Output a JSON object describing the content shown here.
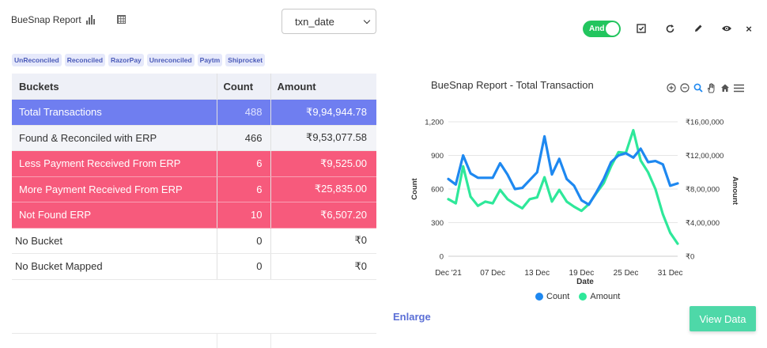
{
  "header": {
    "title": "BueSnap Report",
    "select_value": "txn_date",
    "toggle_label": "And"
  },
  "tags": [
    "UnReconciled",
    "Reconciled",
    "RazorPay",
    "Unreconciled",
    "Paytm",
    "Shiprocket"
  ],
  "table": {
    "headers": [
      "Buckets",
      "Count",
      "Amount"
    ],
    "rows": [
      {
        "bucket": "Total  Transactions",
        "count": "488",
        "amount": "₹9,94,944.78"
      },
      {
        "bucket": "Found & Reconciled with ERP",
        "count": "466",
        "amount": "₹9,53,077.58"
      },
      {
        "bucket": "Less Payment Received From ERP",
        "count": "6",
        "amount": "₹9,525.00"
      },
      {
        "bucket": "More Payment Received From ERP",
        "count": "6",
        "amount": "₹25,835.00"
      },
      {
        "bucket": "Not Found ERP",
        "count": "10",
        "amount": "₹6,507.20"
      },
      {
        "bucket": "No Bucket",
        "count": "0",
        "amount": "₹0"
      },
      {
        "bucket": "No Bucket Mapped",
        "count": "0",
        "amount": "₹0"
      }
    ]
  },
  "actions": {
    "enlarge_label": "Enlarge",
    "view_data_label": "View Data"
  },
  "colors": {
    "count_series": "#1e88f0",
    "amount_series": "#2ee89a",
    "total_row": "#6f7ef0",
    "alert_row": "#f75a7c",
    "toggle": "#22c55e"
  },
  "chart_data": {
    "type": "line",
    "title": "BueSnap Report - Total Transaction",
    "xlabel": "Date",
    "ylabel": "Count",
    "y2label": "Amount",
    "ylim": [
      0,
      1200
    ],
    "y2lim": [
      0,
      1600000
    ],
    "y_ticks": [
      "0",
      "300",
      "600",
      "900",
      "1,200"
    ],
    "y2_ticks": [
      "₹0",
      "₹4,00,000",
      "₹8,00,000",
      "₹12,00,000",
      "₹16,00,000"
    ],
    "x_ticks": [
      {
        "label": "Dec '21",
        "x": 0
      },
      {
        "label": "07 Dec",
        "x": 6
      },
      {
        "label": "13 Dec",
        "x": 12
      },
      {
        "label": "19 Dec",
        "x": 18
      },
      {
        "label": "25 Dec",
        "x": 24
      },
      {
        "label": "31 Dec",
        "x": 30
      }
    ],
    "x": [
      0,
      1,
      2,
      3,
      4,
      5,
      6,
      7,
      8,
      9,
      10,
      11,
      12,
      13,
      14,
      15,
      16,
      17,
      18,
      19,
      20,
      21,
      22,
      23,
      24,
      25,
      26,
      27,
      28,
      29,
      30,
      31
    ],
    "series": [
      {
        "name": "Count",
        "axis": "left",
        "values": [
          690,
          640,
          900,
          740,
          700,
          700,
          700,
          830,
          730,
          600,
          610,
          680,
          750,
          1070,
          730,
          870,
          690,
          630,
          500,
          460,
          570,
          690,
          840,
          900,
          920,
          880,
          960,
          840,
          850,
          820,
          630,
          650
        ]
      },
      {
        "name": "Amount",
        "axis": "right",
        "values": [
          680000,
          630000,
          1070000,
          710000,
          600000,
          650000,
          630000,
          790000,
          680000,
          620000,
          570000,
          680000,
          700000,
          940000,
          650000,
          790000,
          650000,
          590000,
          540000,
          620000,
          750000,
          870000,
          1070000,
          1240000,
          1230000,
          1500000,
          1140000,
          1000000,
          800000,
          500000,
          280000,
          150000
        ]
      }
    ],
    "legend_position": "bottom",
    "grid": "horizontal"
  }
}
